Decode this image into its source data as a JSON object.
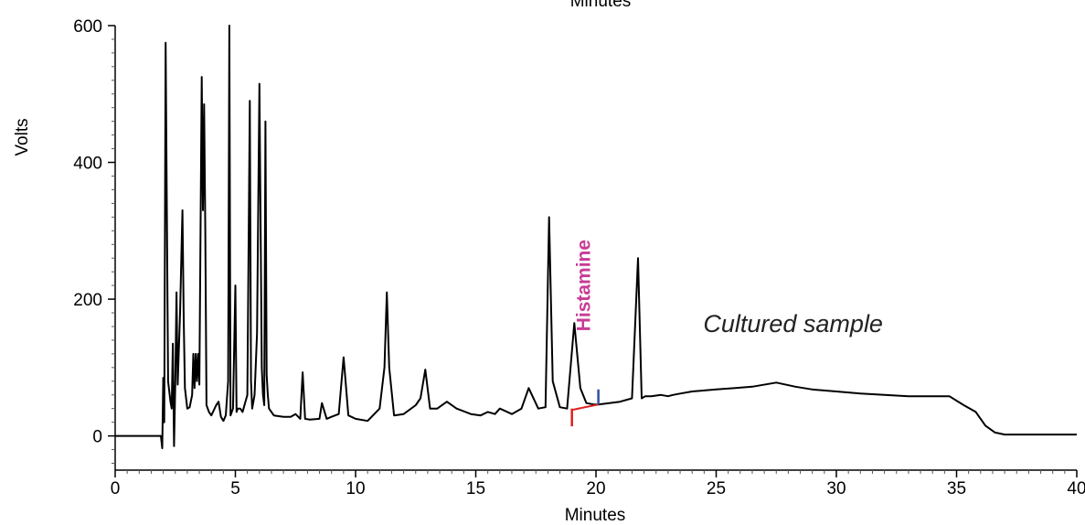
{
  "chart_data": {
    "type": "line",
    "xlabel": "Minutes",
    "top_label": "Minutes",
    "ylabel": "Volts",
    "xlim": [
      0,
      40
    ],
    "ylim": [
      -50,
      600
    ],
    "x_ticks": [
      0,
      5,
      10,
      15,
      20,
      25,
      30,
      35,
      40
    ],
    "y_ticks": [
      0,
      200,
      400,
      600
    ],
    "grid": false,
    "line_color": "#000000",
    "annotations": [
      {
        "text": "Histamine",
        "x": 19.3,
        "y": 220,
        "rotation": -90,
        "color": "#c83c96"
      },
      {
        "text": "Cultured sample",
        "x": 28.2,
        "y": 152,
        "color": "#222222"
      }
    ],
    "integration_marks": {
      "baseline": {
        "x": [
          19.0,
          20.1
        ],
        "y": [
          38,
          46
        ],
        "color": "#e02020"
      },
      "start_tick": {
        "x": 19.0,
        "y": [
          14,
          40
        ],
        "color": "#e02020"
      },
      "end_tick": {
        "x": 20.1,
        "y": [
          46,
          68
        ],
        "color": "#3050a0"
      }
    },
    "series": [
      {
        "x": [
          0,
          1.9,
          1.96,
          2.0,
          2.04,
          2.1,
          2.2,
          2.3,
          2.35,
          2.4,
          2.45,
          2.5,
          2.55,
          2.6,
          2.7,
          2.8,
          2.85,
          2.9,
          3.0,
          3.1,
          3.2,
          3.25,
          3.3,
          3.35,
          3.4,
          3.45,
          3.5,
          3.6,
          3.65,
          3.7,
          3.75,
          3.8,
          3.9,
          4.0,
          4.2,
          4.3,
          4.4,
          4.5,
          4.6,
          4.7,
          4.75,
          4.8,
          4.9,
          5.0,
          5.05,
          5.1,
          5.2,
          5.3,
          5.5,
          5.6,
          5.65,
          5.7,
          5.8,
          5.9,
          6.0,
          6.1,
          6.15,
          6.2,
          6.25,
          6.3,
          6.35,
          6.4,
          6.6,
          7.0,
          7.3,
          7.5,
          7.7,
          7.8,
          7.9,
          8.1,
          8.5,
          8.6,
          8.8,
          9.0,
          9.3,
          9.5,
          9.7,
          10.0,
          10.5,
          11.0,
          11.2,
          11.3,
          11.4,
          11.6,
          12.0,
          12.5,
          12.7,
          12.9,
          13.1,
          13.4,
          13.8,
          14.2,
          14.8,
          15.2,
          15.5,
          15.8,
          16.0,
          16.5,
          16.9,
          17.2,
          17.6,
          17.9,
          18.05,
          18.2,
          18.5,
          18.8,
          19.1,
          19.35,
          19.6,
          19.9,
          20.1,
          21.0,
          21.5,
          21.75,
          21.9,
          22.05,
          22.3,
          22.7,
          23.0,
          23.2,
          23.5,
          24.0,
          25.0,
          25.8,
          26.5,
          27.5,
          28.3,
          29.0,
          30.0,
          31.0,
          32.0,
          33.0,
          34.0,
          34.7,
          35.3,
          35.8,
          36.2,
          36.6,
          37.0,
          38.0,
          40.0
        ],
        "values": [
          0,
          0,
          -18,
          85,
          20,
          575,
          80,
          50,
          40,
          135,
          -15,
          80,
          210,
          75,
          180,
          330,
          170,
          70,
          40,
          42,
          60,
          120,
          70,
          120,
          80,
          120,
          75,
          525,
          330,
          485,
          300,
          45,
          35,
          30,
          45,
          50,
          28,
          22,
          30,
          80,
          600,
          30,
          40,
          220,
          35,
          40,
          40,
          35,
          60,
          490,
          80,
          40,
          60,
          150,
          515,
          100,
          60,
          45,
          460,
          90,
          60,
          40,
          30,
          28,
          28,
          32,
          25,
          93,
          25,
          24,
          25,
          48,
          25,
          28,
          32,
          115,
          30,
          25,
          22,
          40,
          100,
          210,
          100,
          30,
          32,
          45,
          55,
          97,
          40,
          40,
          50,
          40,
          32,
          30,
          35,
          32,
          40,
          32,
          40,
          70,
          40,
          42,
          320,
          80,
          42,
          40,
          165,
          70,
          48,
          46,
          46,
          50,
          55,
          260,
          55,
          58,
          58,
          60,
          58,
          60,
          62,
          65,
          68,
          70,
          72,
          78,
          72,
          68,
          65,
          62,
          60,
          58,
          58,
          58,
          45,
          35,
          15,
          5,
          2,
          2,
          2
        ],
        "color": "#000000"
      }
    ]
  }
}
